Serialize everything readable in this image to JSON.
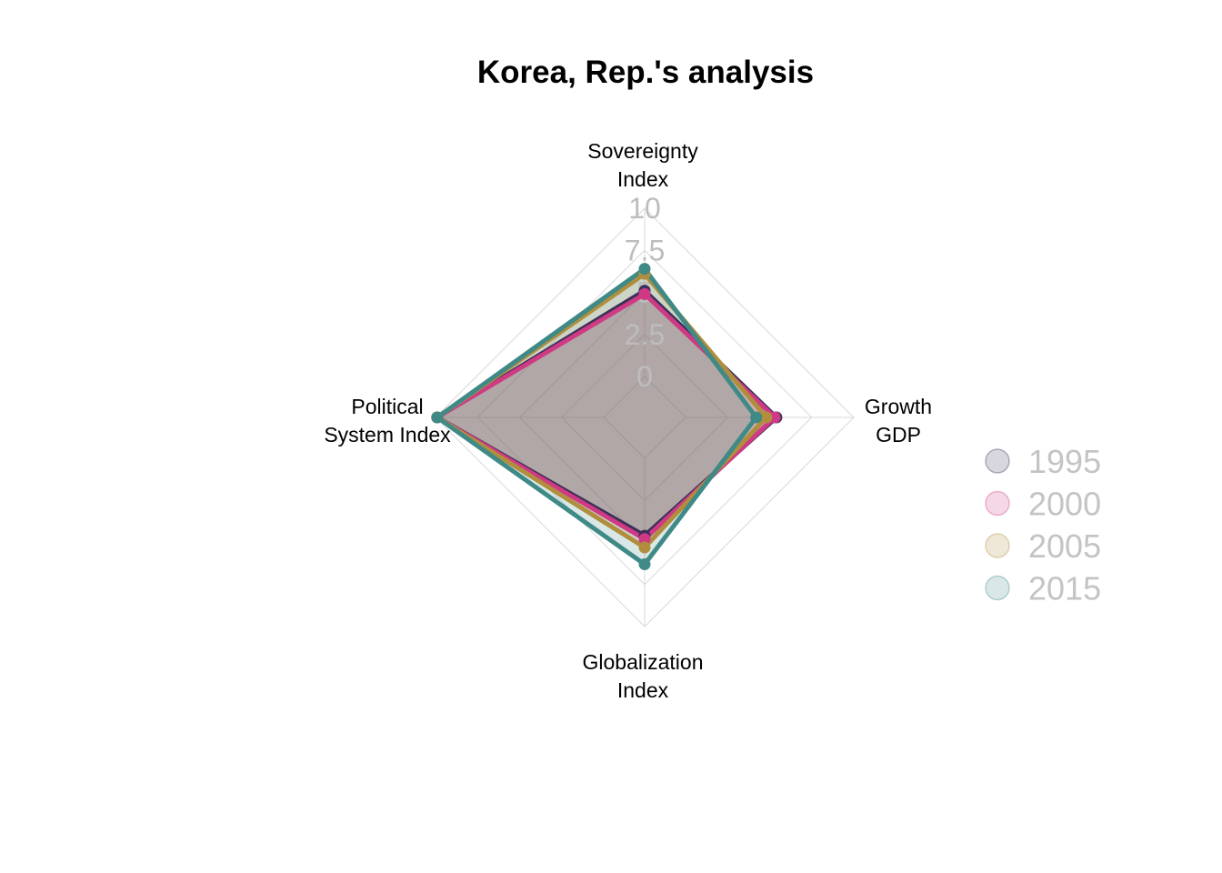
{
  "chart_data": {
    "type": "radar",
    "title": "Korea, Rep.'s analysis",
    "axes": [
      {
        "key": "sovereignty",
        "label_lines": [
          "Sovereignty",
          "Index"
        ]
      },
      {
        "key": "growth",
        "label_lines": [
          "Growth",
          "GDP"
        ]
      },
      {
        "key": "globalization",
        "label_lines": [
          "Globalization",
          "Index"
        ]
      },
      {
        "key": "political",
        "label_lines": [
          "Political",
          "System Index"
        ]
      }
    ],
    "ticks": [
      "0",
      "2.5",
      "5",
      "7.5",
      "10"
    ],
    "range": [
      0,
      10
    ],
    "grid": true,
    "legend_position": "right",
    "series": [
      {
        "name": "1995",
        "color": "#3d3059",
        "values": [
          5.1,
          5.4,
          4.6,
          9.9
        ]
      },
      {
        "name": "2000",
        "color": "#cf3a84",
        "values": [
          4.9,
          5.3,
          4.8,
          9.9
        ]
      },
      {
        "name": "2005",
        "color": "#b08e3e",
        "values": [
          6.1,
          4.8,
          5.3,
          9.9
        ]
      },
      {
        "name": "2015",
        "color": "#3f8a87",
        "values": [
          6.4,
          4.2,
          6.3,
          9.9
        ]
      }
    ]
  }
}
